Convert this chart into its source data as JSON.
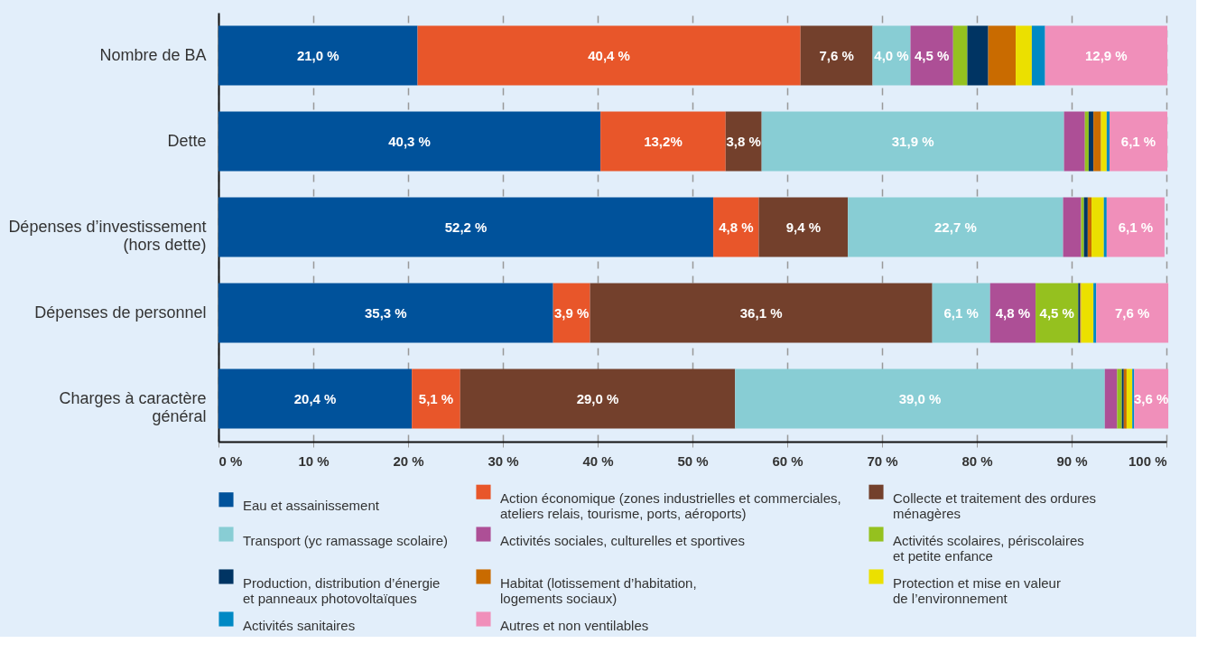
{
  "chart_data": {
    "type": "bar",
    "orientation": "horizontal",
    "stacked": true,
    "categories": [
      "Nombre de  BA",
      "Dette",
      "Dépenses d’investissement\n(hors dette)",
      "Dépenses de personnel",
      "Charges à caractère\ngénéral"
    ],
    "series": [
      {
        "name": "Eau et assainissement",
        "color": "#00529b",
        "values": [
          21.0,
          40.3,
          52.2,
          35.3,
          20.4
        ],
        "value_labels": [
          "21,0 %",
          "40,3 %",
          "52,2 %",
          "35,3 %",
          "20,4 %"
        ]
      },
      {
        "name": "Action économique (zones industrielles et commerciales,\nateliers relais, tourisme, ports, aéroports)",
        "color": "#e8562a",
        "values": [
          40.4,
          13.2,
          4.8,
          3.9,
          5.1
        ],
        "value_labels": [
          "40,4 %",
          "13,2%",
          "4,8 %",
          "3,9 %",
          "5,1 %"
        ]
      },
      {
        "name": "Collecte et traitement des ordures\nménagères",
        "color": "#73402c",
        "values": [
          7.6,
          3.8,
          9.4,
          36.1,
          29.0
        ],
        "value_labels": [
          "7,6 %",
          "3,8 %",
          "9,4 %",
          "36,1 %",
          "29,0 %"
        ]
      },
      {
        "name": "Transport (yc ramassage scolaire)",
        "color": "#88cdd4",
        "values": [
          4.0,
          31.9,
          22.7,
          6.1,
          39.0
        ],
        "value_labels": [
          "4,0 %",
          "31,9 %",
          "22,7 %",
          "6,1 %",
          "39,0 %"
        ]
      },
      {
        "name": "Activités sociales, culturelles et sportives",
        "color": "#ad4f96",
        "values": [
          4.5,
          2.2,
          1.9,
          4.8,
          1.3
        ],
        "value_labels": [
          "4,5 %",
          null,
          null,
          "4,8 %",
          null
        ]
      },
      {
        "name": "Activités scolaires, périscolaires\net petite enfance",
        "color": "#95c11f",
        "values": [
          1.5,
          0.4,
          0.3,
          4.5,
          0.5
        ],
        "value_labels": [
          null,
          null,
          null,
          "4,5 %",
          null
        ]
      },
      {
        "name": "Production, distribution d’énergie\net panneaux photovoltaïques",
        "color": "#003463",
        "values": [
          2.2,
          0.5,
          0.4,
          0.2,
          0.2
        ]
      },
      {
        "name": "Habitat (lotissement d’habitation,\nlogements sociaux)",
        "color": "#c96b00",
        "values": [
          2.9,
          0.8,
          0.4,
          0.1,
          0.3
        ]
      },
      {
        "name": "Protection et mise en   valeur\n de l’environnement",
        "color": "#ebe000",
        "values": [
          1.7,
          0.6,
          1.3,
          1.3,
          0.6
        ]
      },
      {
        "name": "Activités sanitaires",
        "color": "#0089c4",
        "values": [
          1.4,
          0.3,
          0.3,
          0.3,
          0.2
        ]
      },
      {
        "name": "Autres et non ventilables",
        "color": "#f08fba",
        "values": [
          12.9,
          6.1,
          6.1,
          7.6,
          3.6
        ],
        "value_labels": [
          "12,9 %",
          "6,1 %",
          "6,1 %",
          "7,6 %",
          "3,6 %"
        ]
      }
    ],
    "xlim": [
      0,
      100
    ],
    "xticks": [
      {
        "value": 0,
        "label": "0 %"
      },
      {
        "value": 10,
        "label": "10 %"
      },
      {
        "value": 20,
        "label": "20 %"
      },
      {
        "value": 30,
        "label": "30 %"
      },
      {
        "value": 40,
        "label": "40 %"
      },
      {
        "value": 50,
        "label": "50 %"
      },
      {
        "value": 60,
        "label": "60 %"
      },
      {
        "value": 70,
        "label": "70 %"
      },
      {
        "value": 80,
        "label": "80 %"
      },
      {
        "value": 90,
        "label": "90 %"
      },
      {
        "value": 100,
        "label": "100 %"
      }
    ],
    "grid": "x",
    "legend": "bottom"
  }
}
